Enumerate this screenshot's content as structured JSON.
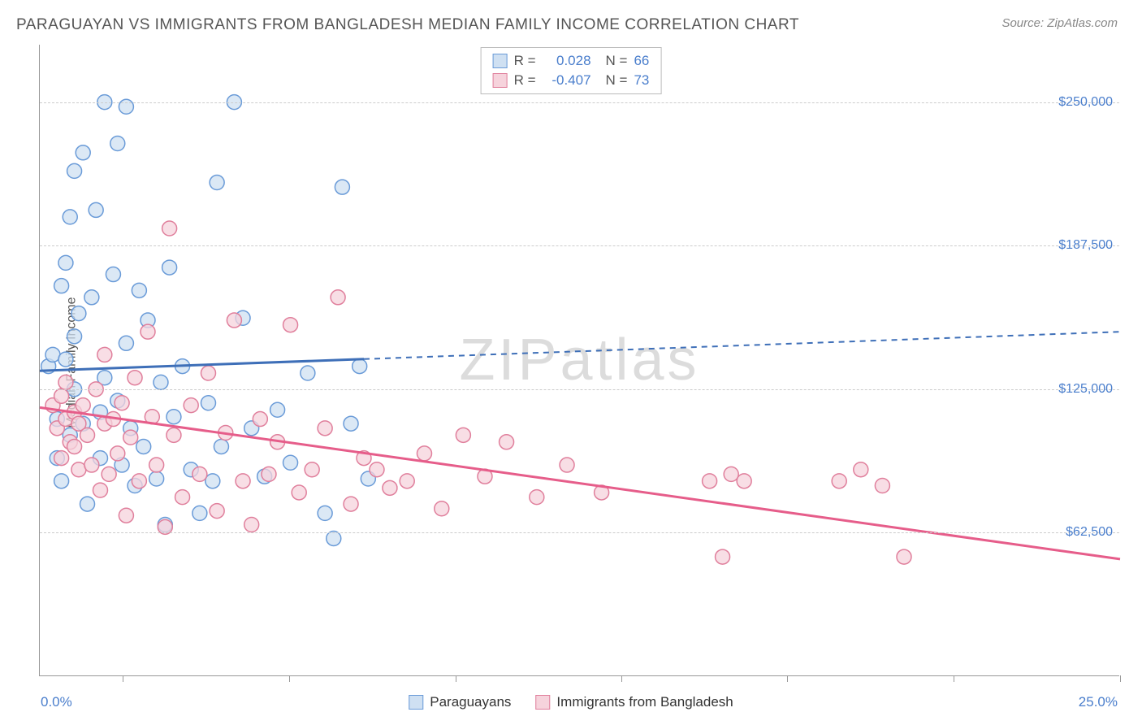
{
  "header": {
    "title": "PARAGUAYAN VS IMMIGRANTS FROM BANGLADESH MEDIAN FAMILY INCOME CORRELATION CHART",
    "source": "Source: ZipAtlas.com"
  },
  "watermark": "ZIPatlas",
  "ylabel": "Median Family Income",
  "chart": {
    "type": "scatter",
    "background_color": "#ffffff",
    "grid_color": "#cccccc",
    "grid_dash": "4,4",
    "axis_color": "#999999",
    "xlim": [
      0,
      25
    ],
    "ylim": [
      0,
      275000
    ],
    "xaxis": {
      "min_label": "0.0%",
      "max_label": "25.0%",
      "tick_positions_pct": [
        0.077,
        0.231,
        0.385,
        0.538,
        0.692,
        0.846,
        1.0
      ]
    },
    "yaxis": {
      "ticks": [
        {
          "value": 62500,
          "label": "$62,500"
        },
        {
          "value": 125000,
          "label": "$125,000"
        },
        {
          "value": 187500,
          "label": "$187,500"
        },
        {
          "value": 250000,
          "label": "$250,000"
        }
      ],
      "label_color": "#4a7ecc",
      "label_fontsize": 16
    },
    "series": [
      {
        "id": "paraguayans",
        "name": "Paraguayans",
        "R": "0.028",
        "N": "66",
        "marker_fill": "#cfe0f2",
        "marker_stroke": "#6a9bd8",
        "marker_radius": 9,
        "marker_opacity": 0.75,
        "trend_color": "#3e6fb8",
        "trend_width": 3,
        "trend": {
          "y_at_xmin": 133000,
          "y_at_xmax": 150000,
          "solid_until_x": 7.5
        },
        "points": [
          [
            0.2,
            135000
          ],
          [
            0.3,
            140000
          ],
          [
            0.4,
            95000
          ],
          [
            0.4,
            112000
          ],
          [
            0.5,
            85000
          ],
          [
            0.5,
            170000
          ],
          [
            0.6,
            180000
          ],
          [
            0.6,
            138000
          ],
          [
            0.7,
            200000
          ],
          [
            0.7,
            105000
          ],
          [
            0.8,
            220000
          ],
          [
            0.8,
            125000
          ],
          [
            0.8,
            148000
          ],
          [
            0.9,
            158000
          ],
          [
            1.0,
            228000
          ],
          [
            1.0,
            110000
          ],
          [
            1.1,
            75000
          ],
          [
            1.2,
            165000
          ],
          [
            1.3,
            203000
          ],
          [
            1.4,
            95000
          ],
          [
            1.4,
            115000
          ],
          [
            1.5,
            130000
          ],
          [
            1.5,
            250000
          ],
          [
            1.7,
            175000
          ],
          [
            1.8,
            232000
          ],
          [
            1.8,
            120000
          ],
          [
            1.9,
            92000
          ],
          [
            2.0,
            145000
          ],
          [
            2.0,
            248000
          ],
          [
            2.1,
            108000
          ],
          [
            2.2,
            83000
          ],
          [
            2.3,
            168000
          ],
          [
            2.4,
            100000
          ],
          [
            2.5,
            155000
          ],
          [
            2.7,
            86000
          ],
          [
            2.8,
            128000
          ],
          [
            2.9,
            66000
          ],
          [
            3.0,
            178000
          ],
          [
            3.1,
            113000
          ],
          [
            3.3,
            135000
          ],
          [
            3.5,
            90000
          ],
          [
            3.7,
            71000
          ],
          [
            3.9,
            119000
          ],
          [
            4.0,
            85000
          ],
          [
            4.1,
            215000
          ],
          [
            4.2,
            100000
          ],
          [
            4.5,
            250000
          ],
          [
            4.7,
            156000
          ],
          [
            4.9,
            108000
          ],
          [
            5.2,
            87000
          ],
          [
            5.5,
            116000
          ],
          [
            5.8,
            93000
          ],
          [
            6.2,
            132000
          ],
          [
            6.6,
            71000
          ],
          [
            6.8,
            60000
          ],
          [
            7.0,
            213000
          ],
          [
            7.2,
            110000
          ],
          [
            7.4,
            135000
          ],
          [
            7.6,
            86000
          ]
        ]
      },
      {
        "id": "bangladesh",
        "name": "Immigrants from Bangladesh",
        "R": "-0.407",
        "N": "73",
        "marker_fill": "#f6d3dc",
        "marker_stroke": "#e07f9c",
        "marker_radius": 9,
        "marker_opacity": 0.75,
        "trend_color": "#e65d8a",
        "trend_width": 3,
        "trend": {
          "y_at_xmin": 117000,
          "y_at_xmax": 51000,
          "solid_until_x": 25
        },
        "points": [
          [
            0.3,
            118000
          ],
          [
            0.4,
            108000
          ],
          [
            0.5,
            122000
          ],
          [
            0.5,
            95000
          ],
          [
            0.6,
            112000
          ],
          [
            0.6,
            128000
          ],
          [
            0.7,
            102000
          ],
          [
            0.8,
            100000
          ],
          [
            0.8,
            115000
          ],
          [
            0.9,
            110000
          ],
          [
            0.9,
            90000
          ],
          [
            1.0,
            118000
          ],
          [
            1.1,
            105000
          ],
          [
            1.2,
            92000
          ],
          [
            1.3,
            125000
          ],
          [
            1.4,
            81000
          ],
          [
            1.5,
            110000
          ],
          [
            1.5,
            140000
          ],
          [
            1.6,
            88000
          ],
          [
            1.7,
            112000
          ],
          [
            1.8,
            97000
          ],
          [
            1.9,
            119000
          ],
          [
            2.0,
            70000
          ],
          [
            2.1,
            104000
          ],
          [
            2.2,
            130000
          ],
          [
            2.3,
            85000
          ],
          [
            2.5,
            150000
          ],
          [
            2.6,
            113000
          ],
          [
            2.7,
            92000
          ],
          [
            2.9,
            65000
          ],
          [
            3.0,
            195000
          ],
          [
            3.1,
            105000
          ],
          [
            3.3,
            78000
          ],
          [
            3.5,
            118000
          ],
          [
            3.7,
            88000
          ],
          [
            3.9,
            132000
          ],
          [
            4.1,
            72000
          ],
          [
            4.3,
            106000
          ],
          [
            4.5,
            155000
          ],
          [
            4.7,
            85000
          ],
          [
            4.9,
            66000
          ],
          [
            5.1,
            112000
          ],
          [
            5.3,
            88000
          ],
          [
            5.5,
            102000
          ],
          [
            5.8,
            153000
          ],
          [
            6.0,
            80000
          ],
          [
            6.3,
            90000
          ],
          [
            6.6,
            108000
          ],
          [
            6.9,
            165000
          ],
          [
            7.2,
            75000
          ],
          [
            7.5,
            95000
          ],
          [
            7.8,
            90000
          ],
          [
            8.1,
            82000
          ],
          [
            8.5,
            85000
          ],
          [
            8.9,
            97000
          ],
          [
            9.3,
            73000
          ],
          [
            9.8,
            105000
          ],
          [
            10.3,
            87000
          ],
          [
            10.8,
            102000
          ],
          [
            11.5,
            78000
          ],
          [
            12.2,
            92000
          ],
          [
            13.0,
            80000
          ],
          [
            15.5,
            85000
          ],
          [
            16.0,
            88000
          ],
          [
            16.3,
            85000
          ],
          [
            15.8,
            52000
          ],
          [
            18.5,
            85000
          ],
          [
            19.0,
            90000
          ],
          [
            19.5,
            83000
          ],
          [
            20.0,
            52000
          ]
        ]
      }
    ]
  },
  "legend_top": {
    "R_label": "R =",
    "N_label": "N =",
    "text_color": "#555555",
    "value_color": "#4a7ecc"
  },
  "legend_bottom": {
    "text_color": "#333333"
  },
  "title_fontsize": 19,
  "title_color": "#555555",
  "source_color": "#888888"
}
